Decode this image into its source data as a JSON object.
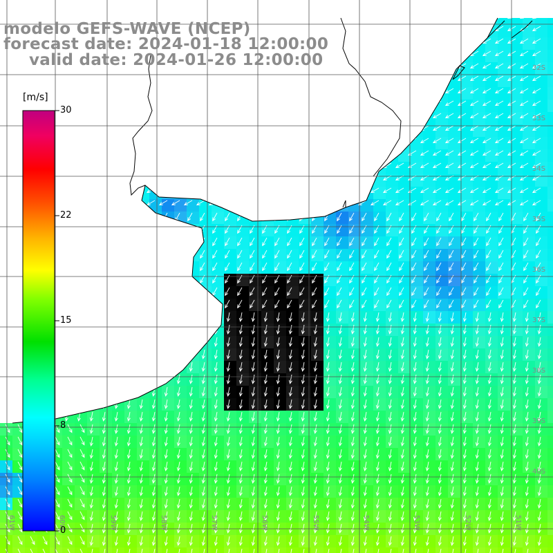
{
  "title": {
    "line1": "modelo GEFS-WAVE (NCEP)",
    "line2": "forecast date: 2024-01-18 12:00:00",
    "line3": "valid date: 2024-01-26 12:00:00"
  },
  "legend": {
    "unit": "[m/s]",
    "ticks": [
      "30",
      "22",
      "15",
      "8",
      "0"
    ],
    "range": [
      0,
      30
    ],
    "colors": [
      "#0000ff",
      "#00c8ff",
      "#00ffff",
      "#00ff64",
      "#00e600",
      "#64ff00",
      "#ffff00",
      "#ff8000",
      "#ff0000",
      "#ff0064",
      "#c00080"
    ]
  },
  "map": {
    "lat_labels": [
      "32S",
      "33S",
      "34S",
      "35S",
      "36S",
      "37S",
      "38S",
      "39S",
      "40S"
    ],
    "lon_labels": [
      "61W",
      "60W",
      "59W",
      "58W",
      "57W",
      "56W",
      "55W",
      "54W",
      "53W",
      "52W",
      "51W"
    ],
    "colors": {
      "land": "#ffffff",
      "coast": "#000000",
      "grid": "#555555",
      "deep_blue": "#1478f0",
      "cyan": "#00f0f0",
      "green": "#28ff3c",
      "yellow_green": "#8cff00",
      "arrow": "#ffffff"
    }
  }
}
